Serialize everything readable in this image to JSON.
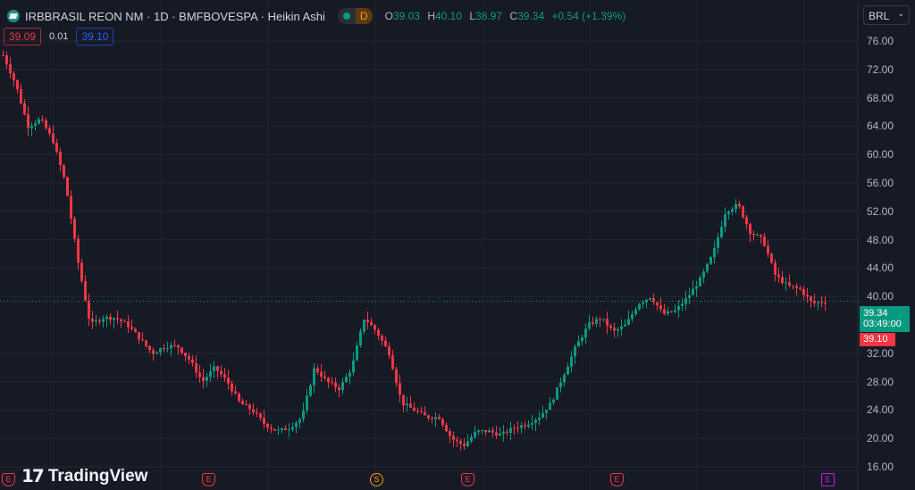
{
  "header": {
    "symbol": "IRBBRASIL REON NM · 1D · BMFBOVESPA · Heikin Ashi",
    "interval_badge": "D",
    "ohlc": {
      "o_label": "O",
      "o": "39.03",
      "h_label": "H",
      "h": "40.10",
      "l_label": "L",
      "l": "38.97",
      "c_label": "C",
      "c": "39.34",
      "change": "+0.54 (+1.39%)"
    }
  },
  "trade": {
    "sell": "39.09",
    "spread": "0.01",
    "buy": "39.10"
  },
  "currency": "BRL",
  "price_label": {
    "last": "39.34",
    "countdown": "03:49:00",
    "bid": "39.10"
  },
  "branding": "TradingView",
  "events": [
    {
      "type": "E"
    },
    {
      "type": "E"
    },
    {
      "type": "S"
    },
    {
      "type": "E"
    },
    {
      "type": "E"
    },
    {
      "type": "E"
    }
  ],
  "colors": {
    "up": "#089981",
    "down": "#f23645",
    "background": "#161a25",
    "grid": "#232632"
  },
  "chart_data": {
    "type": "candlestick",
    "style": "Heikin Ashi",
    "grid": true,
    "ylim": [
      16,
      78
    ],
    "yticks": [
      "76.00",
      "72.00",
      "68.00",
      "64.00",
      "60.00",
      "56.00",
      "52.00",
      "48.00",
      "44.00",
      "40.00",
      "32.00",
      "28.00",
      "24.00",
      "20.00",
      "16.00"
    ],
    "last_price": 39.34,
    "series": [
      {
        "values": [
          74,
          70,
          64,
          65,
          62,
          56,
          45,
          36,
          37,
          37,
          36,
          34,
          32,
          33,
          33,
          31,
          28,
          30,
          28,
          25,
          24,
          22,
          21,
          21.5,
          23,
          30,
          28,
          27,
          30,
          37,
          35,
          32,
          25,
          24,
          23,
          23,
          20,
          19,
          21,
          21,
          20.5,
          21.5,
          22,
          23,
          25,
          29,
          33,
          36,
          37,
          35,
          36,
          39,
          40,
          37.5,
          38,
          40,
          42.5,
          46,
          52,
          53,
          49,
          48,
          43,
          41.5,
          41,
          39,
          39.34
        ]
      }
    ]
  }
}
